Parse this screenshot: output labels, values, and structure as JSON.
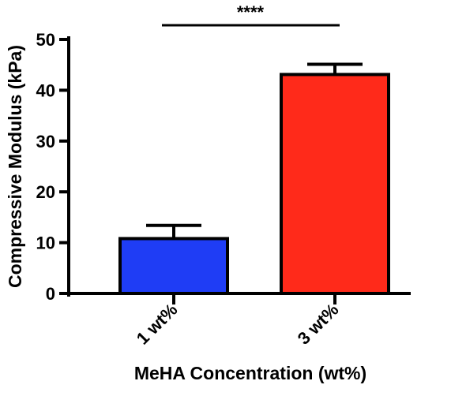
{
  "chart_data": {
    "type": "bar",
    "title": "",
    "xlabel": "MeHA Concentration (wt%)",
    "ylabel": "Compressive Modulus (kPa)",
    "ylim": [
      0,
      50
    ],
    "yticks": [
      0,
      10,
      20,
      30,
      40,
      50
    ],
    "grid": false,
    "legend": "none",
    "categories": [
      "1 wt%",
      "3 wt%"
    ],
    "values": [
      10.8,
      43.1
    ],
    "errors": [
      2.6,
      2.0
    ],
    "colors": [
      "#1f3df5",
      "#ff2a1a"
    ],
    "significance": {
      "between": [
        "1 wt%",
        "3 wt%"
      ],
      "label": "****"
    }
  }
}
